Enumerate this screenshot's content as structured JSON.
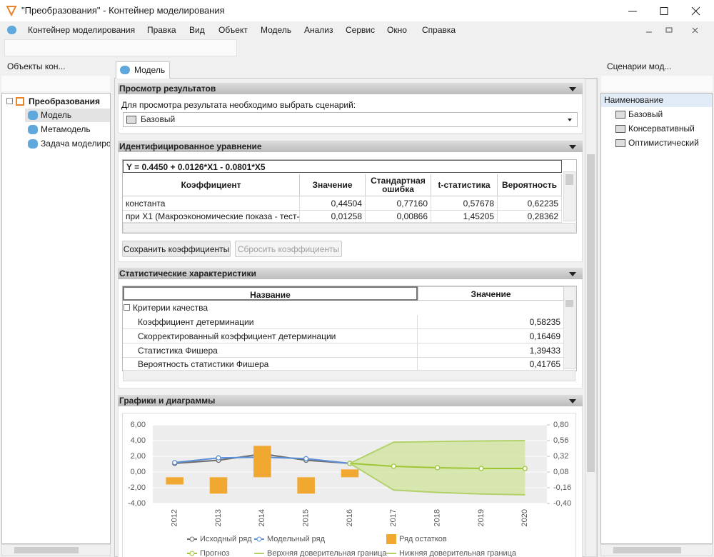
{
  "window": {
    "title": "\"Преобразования\" - Контейнер моделирования"
  },
  "menu": [
    "Контейнер моделирования",
    "Правка",
    "Вид",
    "Объект",
    "Модель",
    "Анализ",
    "Сервис",
    "Окно",
    "Справка"
  ],
  "left_panel": {
    "title": "Объекты кон...",
    "tree": {
      "root": "Преобразования",
      "children": [
        "Модель",
        "Метамодель",
        "Задача моделиро"
      ]
    }
  },
  "tab": "Модель",
  "sections": [
    {
      "title": "Просмотр результатов",
      "label": "Для просмотра результата необходимо выбрать сценарий:",
      "scenario": "Базовый"
    },
    {
      "title": "Идентифицированное уравнение",
      "equation": "Y = 0.4450 + 0.0126*X1 - 0.0801*X5",
      "table": {
        "header": [
          "Коэффициент",
          "Значение",
          "Стандартная ошибка",
          "t-статистика",
          "Вероятность"
        ],
        "rows": [
          [
            "константа",
            "0,44504",
            "0,77160",
            "0,57678",
            "0,62235"
          ],
          [
            "при X1 (Макроэкономические показа - тест-",
            "0,01258",
            "0,00866",
            "1,45205",
            "0,28362"
          ]
        ]
      },
      "buttons": [
        "Сохранить коэффициенты",
        "Сбросить коэффициенты"
      ]
    },
    {
      "title": "Статистические характеристики",
      "table": {
        "header": [
          "Название",
          "Значение"
        ],
        "group": "Критерии качества",
        "rows": [
          [
            "Коэффициент детерминации",
            "0,58235"
          ],
          [
            "Скорректированный коэффициент детерминации",
            "0,16469"
          ],
          [
            "Статистика Фишера",
            "1,39433"
          ],
          [
            "Вероятность статистики Фишера",
            "0,41765"
          ]
        ]
      }
    },
    {
      "title": "Графики и диаграммы"
    }
  ],
  "right_panel": {
    "title": "Сценарии мод...",
    "header": "Наименование",
    "items": [
      "Базовый",
      "Консервативный",
      "Оптимистический"
    ]
  },
  "chart_data": {
    "type": "line",
    "categories": [
      "2012",
      "2013",
      "2014",
      "2015",
      "2016",
      "2017",
      "2018",
      "2019",
      "2020"
    ],
    "ylim": [
      -4,
      6
    ],
    "yticks": [
      {
        "value": -4,
        "label": "-4,00"
      },
      {
        "value": -2,
        "label": "-2,00"
      },
      {
        "value": 0,
        "label": "0,00"
      },
      {
        "value": 2,
        "label": "2,00"
      },
      {
        "value": 4,
        "label": "4,00"
      },
      {
        "value": 6,
        "label": "6,00"
      }
    ],
    "y2lim": [
      -0.4,
      0.8
    ],
    "y2ticks": [
      {
        "value": -0.4,
        "label": "-0,40"
      },
      {
        "value": -0.16,
        "label": "-0,16"
      },
      {
        "value": 0.08,
        "label": "0,08"
      },
      {
        "value": 0.32,
        "label": "0,32"
      },
      {
        "value": 0.56,
        "label": "0,56"
      },
      {
        "value": 0.8,
        "label": "0,80"
      }
    ],
    "grid": true,
    "series": [
      {
        "name": "Исходный ряд",
        "type": "line",
        "markers": true,
        "color": "#6d6d6d",
        "values": [
          1.1,
          1.5,
          2.3,
          1.5,
          1.1,
          null,
          null,
          null,
          null
        ]
      },
      {
        "name": "Модельный ряд",
        "type": "line",
        "markers": true,
        "color": "#5b8fd6",
        "values": [
          1.2,
          1.8,
          1.9,
          1.7,
          1.1,
          null,
          null,
          null,
          null
        ]
      },
      {
        "name": "Ряд остатков",
        "type": "bar",
        "axis": "y2",
        "color": "#f0a830",
        "values": [
          -0.11,
          -0.25,
          0.48,
          -0.25,
          0.12,
          null,
          null,
          null,
          null
        ]
      },
      {
        "name": "Прогноз",
        "type": "line",
        "markers": true,
        "color": "#9dc535",
        "values": [
          null,
          null,
          null,
          null,
          1.1,
          0.73,
          0.55,
          0.45,
          0.45
        ]
      },
      {
        "name": "Верхняя доверительная граница",
        "type": "line",
        "markers": false,
        "color": "#b3d16a",
        "values": [
          null,
          null,
          null,
          null,
          1.1,
          3.8,
          3.9,
          3.95,
          4.0
        ]
      },
      {
        "name": "Нижняя доверительная граница",
        "type": "line",
        "markers": false,
        "color": "#b3d16a",
        "values": [
          null,
          null,
          null,
          null,
          1.1,
          -2.3,
          -2.6,
          -2.8,
          -2.9
        ]
      }
    ]
  }
}
